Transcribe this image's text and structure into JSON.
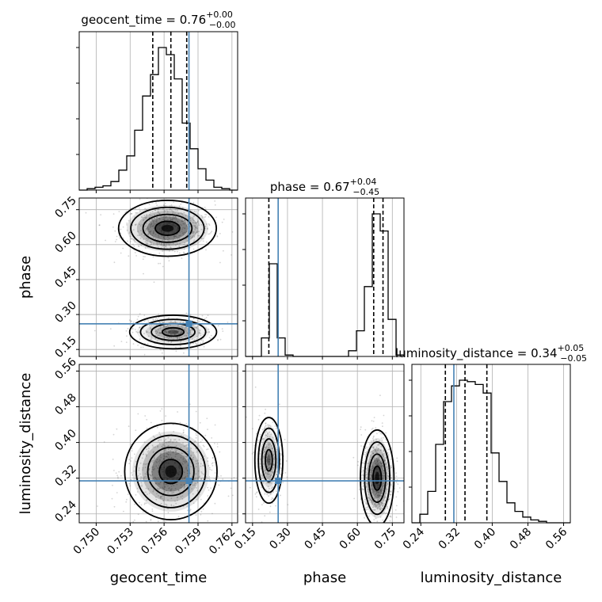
{
  "chart_data": {
    "type": "corner",
    "parameters": [
      "geocent_time",
      "phase",
      "luminosity_distance"
    ],
    "truth": {
      "geocent_time": 0.7582,
      "phase": 0.26,
      "luminosity_distance": 0.314
    },
    "titles": {
      "geocent_time": {
        "name": "geocent_time",
        "median": "0.76",
        "plus": "+0.00",
        "minus": "−0.00"
      },
      "phase": {
        "name": "phase",
        "median": "0.67",
        "plus": "+0.04",
        "minus": "−0.45"
      },
      "luminosity_distance": {
        "name": "luminosity_distance",
        "median": "0.34",
        "plus": "+0.05",
        "minus": "−0.05"
      }
    },
    "axes": {
      "geocent_time": {
        "label": "geocent_time",
        "range": [
          0.7485,
          0.7625
        ],
        "ticks": [
          0.75,
          0.753,
          0.756,
          0.759,
          0.762
        ],
        "tick_labels": [
          "0.750",
          "0.753",
          "0.756",
          "0.759",
          "0.762"
        ]
      },
      "phase": {
        "label": "phase",
        "range": [
          0.12,
          0.8
        ],
        "ticks": [
          0.15,
          0.3,
          0.45,
          0.6,
          0.75
        ],
        "tick_labels": [
          "0.15",
          "0.30",
          "0.45",
          "0.60",
          "0.75"
        ]
      },
      "luminosity_distance": {
        "label": "luminosity_distance",
        "range": [
          0.22,
          0.575
        ],
        "ticks": [
          0.24,
          0.32,
          0.4,
          0.48,
          0.56
        ],
        "tick_labels": [
          "0.24",
          "0.32",
          "0.40",
          "0.48",
          "0.56"
        ]
      }
    },
    "histograms": {
      "geocent_time": {
        "bin_edges": [
          0.7485,
          0.7492,
          0.7499,
          0.7506,
          0.7513,
          0.752,
          0.7527,
          0.7534,
          0.7541,
          0.7548,
          0.7555,
          0.7562,
          0.7569,
          0.7576,
          0.7583,
          0.759,
          0.7597,
          0.7604,
          0.7611,
          0.7618,
          0.7625
        ],
        "values": [
          0,
          0.01,
          0.02,
          0.03,
          0.06,
          0.14,
          0.24,
          0.42,
          0.66,
          0.81,
          1.0,
          0.95,
          0.78,
          0.47,
          0.29,
          0.15,
          0.07,
          0.02,
          0.01,
          0
        ],
        "quantiles": [
          0.755,
          0.7566,
          0.758
        ]
      },
      "phase": {
        "bin_edges": [
          0.12,
          0.154,
          0.188,
          0.222,
          0.256,
          0.29,
          0.324,
          0.358,
          0.392,
          0.426,
          0.46,
          0.494,
          0.528,
          0.562,
          0.596,
          0.63,
          0.664,
          0.698,
          0.732,
          0.766,
          0.8
        ],
        "values": [
          0,
          0,
          0.13,
          0.65,
          0.13,
          0.01,
          0,
          0,
          0,
          0,
          0,
          0,
          0,
          0.04,
          0.18,
          0.49,
          1.0,
          0.88,
          0.26,
          0.01
        ],
        "quantiles": [
          0.22,
          0.67,
          0.71
        ]
      },
      "luminosity_distance": {
        "bin_edges": [
          0.22,
          0.2378,
          0.2555,
          0.2733,
          0.291,
          0.3088,
          0.3265,
          0.3443,
          0.362,
          0.3798,
          0.3975,
          0.4153,
          0.433,
          0.4508,
          0.4685,
          0.4863,
          0.504,
          0.5218,
          0.5395,
          0.5573,
          0.575
        ],
        "values": [
          0,
          0.06,
          0.22,
          0.55,
          0.85,
          0.96,
          1.0,
          0.99,
          0.97,
          0.91,
          0.49,
          0.29,
          0.14,
          0.08,
          0.04,
          0.02,
          0.01,
          0,
          0,
          0
        ],
        "quantiles": [
          0.295,
          0.339,
          0.388
        ]
      }
    },
    "density": {
      "phase_vs_geocent_time": {
        "modes": [
          {
            "x": 0.7563,
            "y": 0.67,
            "sx": 0.0018,
            "sy": 0.05,
            "peak": 1.0
          },
          {
            "x": 0.7568,
            "y": 0.225,
            "sx": 0.0016,
            "sy": 0.03,
            "peak": 0.55
          }
        ]
      },
      "luminosity_distance_vs_geocent_time": {
        "modes": [
          {
            "x": 0.7566,
            "y": 0.335,
            "sx": 0.0017,
            "sy": 0.045,
            "peak": 1.0
          }
        ]
      },
      "luminosity_distance_vs_phase": {
        "modes": [
          {
            "x": 0.22,
            "y": 0.36,
            "sx": 0.025,
            "sy": 0.04,
            "peak": 0.5
          },
          {
            "x": 0.685,
            "y": 0.32,
            "sx": 0.03,
            "sy": 0.045,
            "peak": 1.0
          }
        ]
      }
    },
    "colors": {
      "truth": "#4682b4",
      "hist": "#000000",
      "grid": "#b0b0b0",
      "scatter": "#666666"
    },
    "grid": true
  }
}
